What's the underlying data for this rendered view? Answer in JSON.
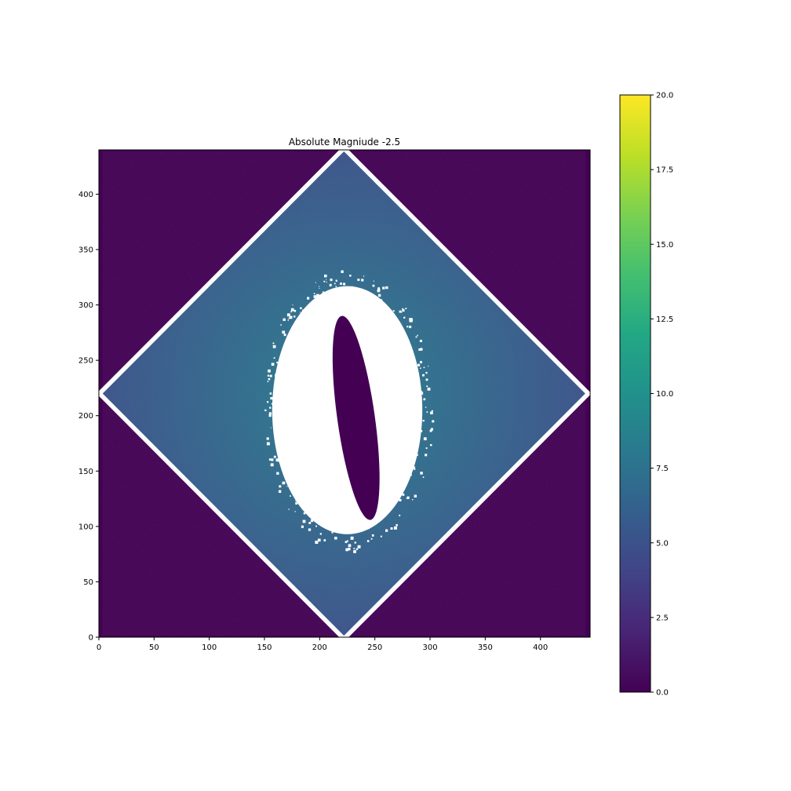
{
  "chart_data": {
    "type": "heatmap",
    "title": "Absolute Magniude -2.5",
    "xlabel": "",
    "ylabel": "",
    "xlim": [
      0,
      445
    ],
    "ylim": [
      0,
      440
    ],
    "x_ticks": [
      0,
      50,
      100,
      150,
      200,
      250,
      300,
      350,
      400
    ],
    "y_ticks": [
      0,
      50,
      100,
      150,
      200,
      250,
      300,
      350,
      400
    ],
    "x_tick_labels": [
      "0",
      "50",
      "100",
      "150",
      "200",
      "250",
      "300",
      "350",
      "400"
    ],
    "y_tick_labels": [
      "0",
      "50",
      "100",
      "150",
      "200",
      "250",
      "300",
      "350",
      "400"
    ],
    "colormap": "viridis",
    "colorbar": {
      "range": [
        0.0,
        20.0
      ],
      "ticks": [
        0.0,
        2.5,
        5.0,
        7.5,
        10.0,
        12.5,
        15.0,
        17.5,
        20.0
      ],
      "tick_labels": [
        "0.0",
        "2.5",
        "5.0",
        "7.5",
        "10.0",
        "12.5",
        "15.0",
        "17.5",
        "20.0"
      ]
    },
    "grid": false,
    "regions": {
      "background_value": 0.0,
      "diamond": {
        "center": [
          222,
          220
        ],
        "half_width": 220,
        "half_height": 220,
        "outer_value": 5.0,
        "inner_value": 8.5,
        "edge_color": "#ffffff"
      },
      "saturated_halo": {
        "center": [
          225,
          205
        ],
        "semi_axis_x": 68,
        "semi_axis_y": 112,
        "fill_color": "#ffffff"
      },
      "inner_ellipse": {
        "center": [
          233,
          198
        ],
        "semi_axis_long": 93,
        "semi_axis_short": 17,
        "tilt_deg": 8,
        "value": 0.0
      }
    }
  }
}
